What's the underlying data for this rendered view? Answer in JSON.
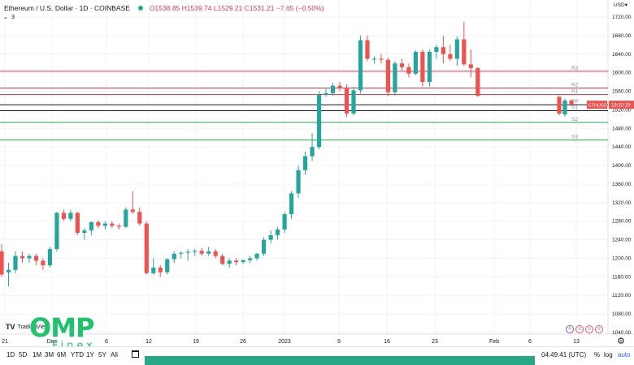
{
  "header": {
    "symbol": "Ethereum / U.S. Dollar · 1D · COINBASE",
    "ohlc": "O1538.85 H1539.74 L1529.21 C1531.21 −7.65 (−0.50%)",
    "indicator_count": "3"
  },
  "price_axis": {
    "currency": "USD",
    "ticks": [
      "1720.00",
      "1680.00",
      "1640.00",
      "1600.00",
      "1560.00",
      "1520.00",
      "1480.00",
      "1440.00",
      "1400.00",
      "1360.00",
      "1320.00",
      "1280.00",
      "1240.00",
      "1200.00",
      "1160.00",
      "1120.00",
      "1080.00",
      "1040.00"
    ],
    "current_symbol": "ETHUSD",
    "current_price_label": "19:10:19"
  },
  "time_axis": {
    "ticks": [
      "21",
      "Dec",
      "6",
      "12",
      "19",
      "26",
      "2023",
      "9",
      "16",
      "23",
      "Feb",
      "6",
      "13"
    ]
  },
  "bottom": {
    "timeframes": [
      "1D",
      "5D",
      "1M",
      "3M",
      "6M",
      "YTD",
      "1Y",
      "5Y",
      "All"
    ],
    "clock": "04:49:41 (UTC)",
    "pct": "%",
    "log": "log",
    "auto": "auto"
  },
  "branding": {
    "omp": "OMP",
    "finex": "Finex",
    "tradingview": "TradingView"
  },
  "colors": {
    "up": "#26a69a",
    "down": "#ef5350",
    "resistance": "#f23645",
    "support": "#22ab4a",
    "pivot": "#131722",
    "price_tag": "#ef5350",
    "logo": "#1fc36c"
  },
  "chart_data": {
    "type": "candlestick",
    "title": "Ethereum / U.S. Dollar · 1D · COINBASE",
    "ylim": [
      1040,
      1730
    ],
    "x_ticks": [
      "21",
      "Dec",
      "6",
      "12",
      "19",
      "26",
      "2023",
      "9",
      "16",
      "23",
      "Feb",
      "6",
      "13"
    ],
    "candles": [
      {
        "o": 1215,
        "h": 1230,
        "l": 1160,
        "c": 1165
      },
      {
        "o": 1170,
        "h": 1190,
        "l": 1140,
        "c": 1175
      },
      {
        "o": 1175,
        "h": 1215,
        "l": 1168,
        "c": 1205
      },
      {
        "o": 1205,
        "h": 1215,
        "l": 1190,
        "c": 1200
      },
      {
        "o": 1200,
        "h": 1210,
        "l": 1190,
        "c": 1205
      },
      {
        "o": 1205,
        "h": 1210,
        "l": 1185,
        "c": 1195
      },
      {
        "o": 1195,
        "h": 1200,
        "l": 1175,
        "c": 1185
      },
      {
        "o": 1185,
        "h": 1225,
        "l": 1180,
        "c": 1220
      },
      {
        "o": 1220,
        "h": 1300,
        "l": 1215,
        "c": 1298
      },
      {
        "o": 1298,
        "h": 1305,
        "l": 1280,
        "c": 1285
      },
      {
        "o": 1285,
        "h": 1305,
        "l": 1280,
        "c": 1298
      },
      {
        "o": 1298,
        "h": 1300,
        "l": 1250,
        "c": 1255
      },
      {
        "o": 1255,
        "h": 1265,
        "l": 1240,
        "c": 1260
      },
      {
        "o": 1260,
        "h": 1280,
        "l": 1250,
        "c": 1278
      },
      {
        "o": 1278,
        "h": 1282,
        "l": 1265,
        "c": 1270
      },
      {
        "o": 1270,
        "h": 1280,
        "l": 1262,
        "c": 1275
      },
      {
        "o": 1275,
        "h": 1280,
        "l": 1265,
        "c": 1270
      },
      {
        "o": 1270,
        "h": 1275,
        "l": 1262,
        "c": 1268
      },
      {
        "o": 1268,
        "h": 1310,
        "l": 1265,
        "c": 1305
      },
      {
        "o": 1305,
        "h": 1345,
        "l": 1295,
        "c": 1300
      },
      {
        "o": 1300,
        "h": 1310,
        "l": 1270,
        "c": 1275
      },
      {
        "o": 1275,
        "h": 1280,
        "l": 1165,
        "c": 1168
      },
      {
        "o": 1168,
        "h": 1200,
        "l": 1165,
        "c": 1180
      },
      {
        "o": 1180,
        "h": 1185,
        "l": 1160,
        "c": 1170
      },
      {
        "o": 1170,
        "h": 1200,
        "l": 1165,
        "c": 1198
      },
      {
        "o": 1198,
        "h": 1215,
        "l": 1190,
        "c": 1210
      },
      {
        "o": 1210,
        "h": 1215,
        "l": 1200,
        "c": 1212
      },
      {
        "o": 1212,
        "h": 1220,
        "l": 1195,
        "c": 1214
      },
      {
        "o": 1214,
        "h": 1220,
        "l": 1205,
        "c": 1216
      },
      {
        "o": 1216,
        "h": 1222,
        "l": 1205,
        "c": 1210
      },
      {
        "o": 1210,
        "h": 1225,
        "l": 1205,
        "c": 1215
      },
      {
        "o": 1215,
        "h": 1220,
        "l": 1200,
        "c": 1205
      },
      {
        "o": 1205,
        "h": 1210,
        "l": 1185,
        "c": 1188
      },
      {
        "o": 1188,
        "h": 1200,
        "l": 1180,
        "c": 1195
      },
      {
        "o": 1195,
        "h": 1200,
        "l": 1185,
        "c": 1192
      },
      {
        "o": 1192,
        "h": 1198,
        "l": 1188,
        "c": 1196
      },
      {
        "o": 1196,
        "h": 1205,
        "l": 1190,
        "c": 1200
      },
      {
        "o": 1200,
        "h": 1212,
        "l": 1195,
        "c": 1210
      },
      {
        "o": 1210,
        "h": 1245,
        "l": 1205,
        "c": 1240
      },
      {
        "o": 1240,
        "h": 1260,
        "l": 1232,
        "c": 1250
      },
      {
        "o": 1250,
        "h": 1268,
        "l": 1240,
        "c": 1262
      },
      {
        "o": 1262,
        "h": 1300,
        "l": 1255,
        "c": 1295
      },
      {
        "o": 1295,
        "h": 1345,
        "l": 1285,
        "c": 1340
      },
      {
        "o": 1340,
        "h": 1400,
        "l": 1330,
        "c": 1390
      },
      {
        "o": 1390,
        "h": 1430,
        "l": 1380,
        "c": 1420
      },
      {
        "o": 1420,
        "h": 1470,
        "l": 1410,
        "c": 1440
      },
      {
        "o": 1440,
        "h": 1560,
        "l": 1435,
        "c": 1552
      },
      {
        "o": 1552,
        "h": 1568,
        "l": 1548,
        "c": 1556
      },
      {
        "o": 1556,
        "h": 1578,
        "l": 1550,
        "c": 1572
      },
      {
        "o": 1572,
        "h": 1580,
        "l": 1560,
        "c": 1566
      },
      {
        "o": 1566,
        "h": 1575,
        "l": 1505,
        "c": 1512
      },
      {
        "o": 1512,
        "h": 1570,
        "l": 1508,
        "c": 1562
      },
      {
        "o": 1562,
        "h": 1680,
        "l": 1555,
        "c": 1670
      },
      {
        "o": 1670,
        "h": 1680,
        "l": 1625,
        "c": 1630
      },
      {
        "o": 1630,
        "h": 1635,
        "l": 1620,
        "c": 1630
      },
      {
        "o": 1630,
        "h": 1640,
        "l": 1620,
        "c": 1628
      },
      {
        "o": 1628,
        "h": 1632,
        "l": 1550,
        "c": 1558
      },
      {
        "o": 1558,
        "h": 1625,
        "l": 1550,
        "c": 1620
      },
      {
        "o": 1620,
        "h": 1630,
        "l": 1605,
        "c": 1612
      },
      {
        "o": 1612,
        "h": 1620,
        "l": 1590,
        "c": 1598
      },
      {
        "o": 1598,
        "h": 1648,
        "l": 1595,
        "c": 1645
      },
      {
        "o": 1645,
        "h": 1650,
        "l": 1570,
        "c": 1580
      },
      {
        "o": 1580,
        "h": 1650,
        "l": 1570,
        "c": 1645
      },
      {
        "o": 1645,
        "h": 1660,
        "l": 1630,
        "c": 1655
      },
      {
        "o": 1655,
        "h": 1680,
        "l": 1620,
        "c": 1640
      },
      {
        "o": 1640,
        "h": 1660,
        "l": 1625,
        "c": 1630
      },
      {
        "o": 1630,
        "h": 1678,
        "l": 1615,
        "c": 1672
      },
      {
        "o": 1672,
        "h": 1710,
        "l": 1615,
        "c": 1618
      },
      {
        "o": 1618,
        "h": 1650,
        "l": 1590,
        "c": 1610
      },
      {
        "o": 1610,
        "h": 1612,
        "l": 1548,
        "c": 1550
      }
    ],
    "tail_candles": [
      {
        "o": 1548,
        "h": 1550,
        "l": 1508,
        "c": 1512
      },
      {
        "o": 1510,
        "h": 1544,
        "l": 1505,
        "c": 1540
      },
      {
        "o": 1540,
        "h": 1542,
        "l": 1528,
        "c": 1531
      }
    ],
    "levels": [
      {
        "label": "R3",
        "price": 1603,
        "kind": "resistance"
      },
      {
        "label": "R2",
        "price": 1567,
        "kind": "resistance"
      },
      {
        "label": "R1",
        "price": 1553,
        "kind": "resistance"
      },
      {
        "label": "PP",
        "price": 1531,
        "kind": "pivot"
      },
      {
        "label": "S1",
        "price": 1518,
        "kind": "pivot"
      },
      {
        "label": "S2",
        "price": 1493,
        "kind": "support"
      },
      {
        "label": "S3",
        "price": 1455,
        "kind": "support"
      }
    ]
  }
}
